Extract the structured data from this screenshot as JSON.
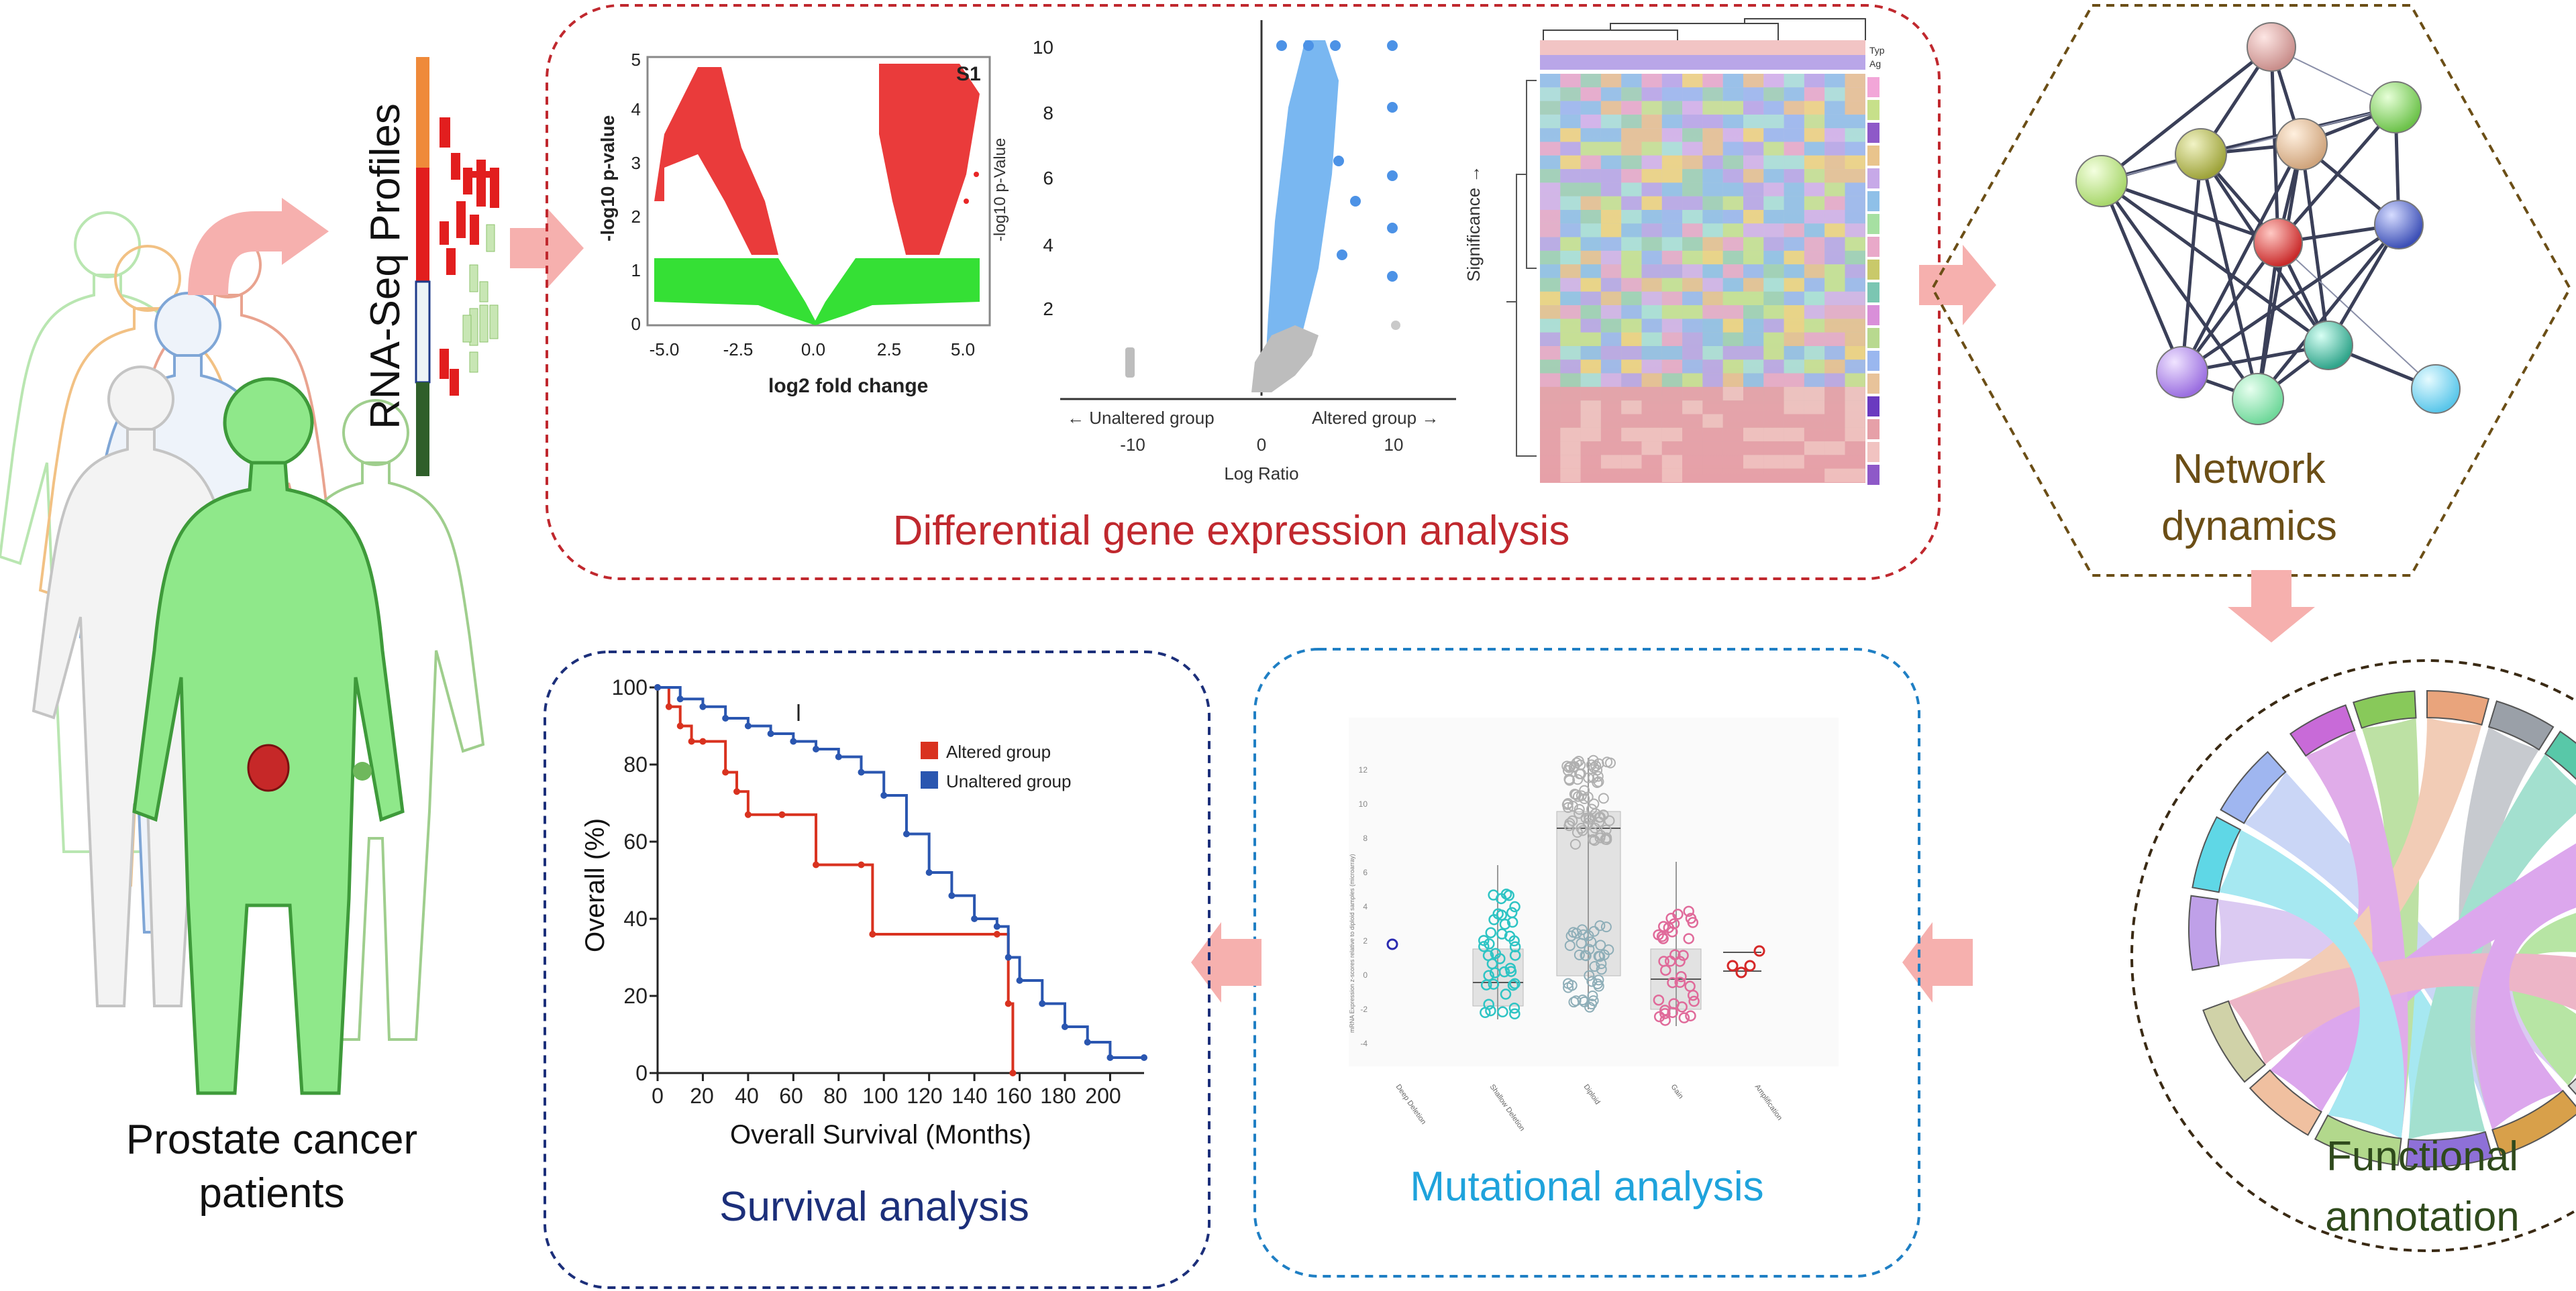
{
  "patients": {
    "label_line1": "Prostate cancer",
    "label_line2": "patients"
  },
  "rnaseq": {
    "label": "RNA-Seq  Profiles"
  },
  "dge": {
    "title": "Differential gene expression analysis",
    "title_color": "#c0282e",
    "volcano": {
      "panel_label": "S1",
      "ylabel": "-log10 p-value",
      "xlabel": "log2 fold change",
      "xticks": [
        "-5.0",
        "-2.5",
        "0.0",
        "2.5",
        "5.0"
      ],
      "yticks": [
        "0",
        "1",
        "2",
        "3",
        "4",
        "5"
      ]
    },
    "cbio_volcano": {
      "ylabel": "-log10 p-Value",
      "xlabel": "Log Ratio",
      "left_group": "← Unaltered group",
      "right_group": "Altered group →",
      "xticks": [
        "-10",
        "0",
        "10"
      ],
      "yticks": [
        "2",
        "4",
        "6",
        "8",
        "10"
      ]
    },
    "heatmap": {
      "ylabel": "Significance →",
      "tag1": "Typ",
      "tag2": "Ag"
    }
  },
  "network": {
    "label_line1": "Network",
    "label_line2": "dynamics",
    "color": "#6b4e16"
  },
  "functional": {
    "label_line1": "Functional",
    "label_line2": "annotation",
    "color": "#2f4a1c"
  },
  "mutational": {
    "title": "Mutational analysis",
    "title_color": "#1fa3dc",
    "ylabel": "mRNA Expression z-scores relative to diploid samples (microarray)",
    "categories": [
      "Deep Deletion",
      "Shallow Deletion",
      "Diploid",
      "Gain",
      "Amplification"
    ],
    "yticks": [
      "-4",
      "-2",
      "0",
      "2",
      "4",
      "6",
      "8",
      "10",
      "12"
    ]
  },
  "survival": {
    "title": "Survival analysis",
    "title_color": "#1c2f7a",
    "ylabel": "Overall (%)",
    "xlabel": "Overall Survival (Months)",
    "legend_altered": "Altered group",
    "legend_unaltered": "Unaltered group",
    "xticks": [
      "0",
      "20",
      "40",
      "60",
      "80",
      "100",
      "120",
      "140",
      "160",
      "180",
      "200"
    ],
    "yticks": [
      "0",
      "20",
      "40",
      "60",
      "80",
      "100"
    ],
    "chart_data": {
      "type": "line",
      "title": "",
      "xlabel": "Overall Survival (Months)",
      "ylabel": "Overall (%)",
      "xlim": [
        0,
        215
      ],
      "ylim": [
        0,
        100
      ],
      "series": [
        {
          "name": "Altered group",
          "color": "#d9321f",
          "x": [
            0,
            5,
            10,
            15,
            20,
            30,
            35,
            40,
            55,
            70,
            90,
            95,
            150,
            155,
            157
          ],
          "y": [
            100,
            95,
            90,
            86,
            86,
            78,
            73,
            67,
            67,
            54,
            54,
            36,
            36,
            18,
            0
          ]
        },
        {
          "name": "Unaltered group",
          "color": "#2a56b0",
          "x": [
            0,
            10,
            20,
            30,
            40,
            50,
            60,
            70,
            80,
            90,
            100,
            110,
            120,
            130,
            140,
            150,
            155,
            160,
            170,
            180,
            190,
            200,
            215
          ],
          "y": [
            100,
            97,
            95,
            92,
            90,
            88,
            86,
            84,
            82,
            78,
            72,
            62,
            52,
            46,
            40,
            38,
            30,
            24,
            18,
            12,
            8,
            4,
            4
          ]
        }
      ]
    }
  }
}
